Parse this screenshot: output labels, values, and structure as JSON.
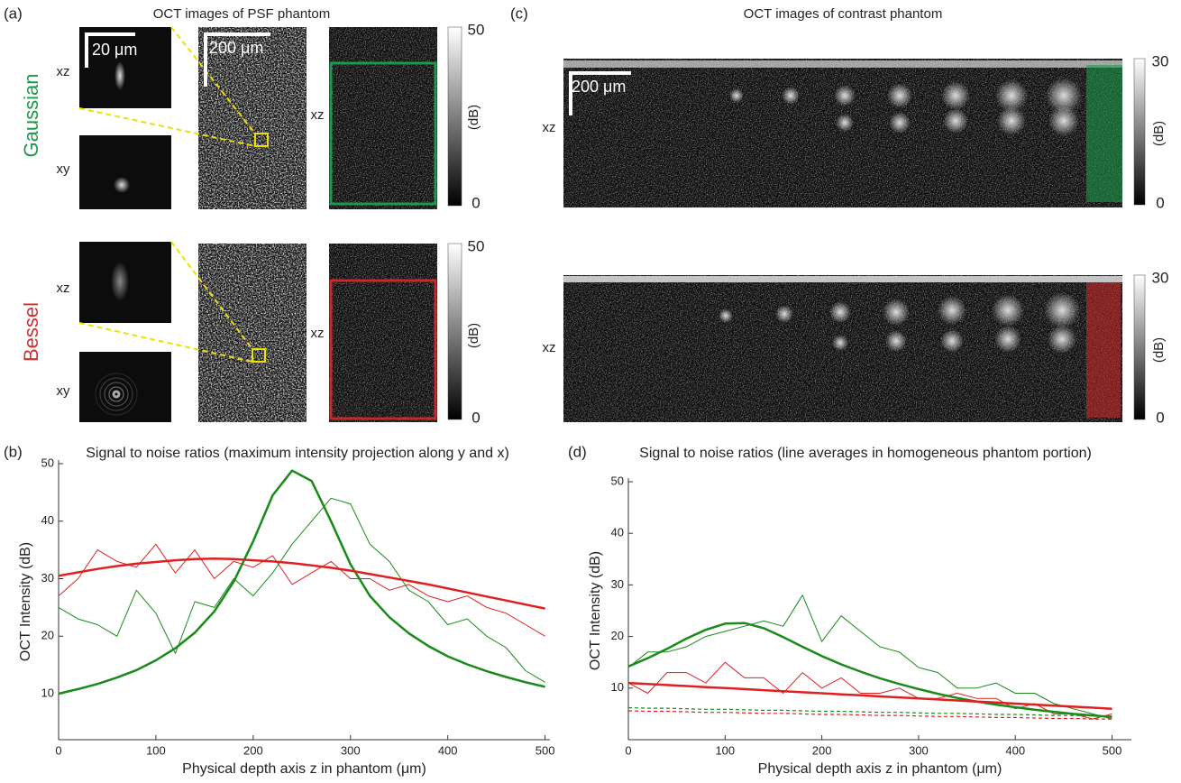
{
  "figure": {
    "panel_a": "(a)",
    "panel_b": "(b)",
    "panel_c": "(c)",
    "panel_d": "(d)",
    "a_title": "OCT images of PSF phantom",
    "c_title": "OCT images of contrast phantom",
    "gaussian": "Gaussian",
    "bessel": "Bessel",
    "plane_xz": "xz",
    "plane_xy": "xy",
    "scale_small": "20 μm",
    "scale_large": "200 μm",
    "colorbar_unit": "(dB)",
    "colorbar_a_ticks": [
      50,
      0
    ],
    "colorbar_c_ticks": [
      30,
      0
    ]
  },
  "chart_data": [
    {
      "type": "line",
      "title": "Signal to noise ratios (maximum intensity projection along y and x)",
      "x_label": "Physical depth axis z in phantom (μm)",
      "y_label": "OCT Intensity (dB)",
      "x": [
        0,
        20,
        40,
        60,
        80,
        100,
        120,
        140,
        160,
        180,
        200,
        220,
        240,
        260,
        280,
        300,
        320,
        340,
        360,
        380,
        400,
        420,
        440,
        460,
        480,
        500
      ],
      "series": [
        {
          "color": "#e02020",
          "values": [
            27,
            30,
            35,
            33,
            32,
            36,
            31,
            35,
            30,
            33,
            32,
            34,
            29,
            31,
            33,
            30,
            30,
            28,
            29,
            27,
            26,
            27,
            25,
            24,
            22,
            20
          ]
        },
        {
          "color": "#1a8a1a",
          "values": [
            25,
            23,
            22,
            20,
            28,
            24,
            17,
            26,
            25,
            30,
            27,
            31,
            36,
            40,
            44,
            43,
            36,
            33,
            28,
            26,
            22,
            23,
            20,
            18,
            14,
            12
          ]
        },
        {
          "color": "#1a8a1a",
          "values": [
            10,
            10.8,
            11.7,
            12.8,
            14.1,
            15.8,
            17.9,
            20.6,
            24.3,
            29.5,
            36.5,
            44.5,
            48.8,
            47,
            40,
            32.5,
            27,
            23.3,
            20.5,
            18.3,
            16.5,
            15.1,
            13.9,
            12.9,
            12,
            11.2
          ]
        },
        {
          "color": "#e02020",
          "values": [
            30.5,
            31.1,
            31.7,
            32.2,
            32.6,
            32.9,
            33.2,
            33.4,
            33.5,
            33.4,
            33.2,
            33,
            32.7,
            32.3,
            31.9,
            31.4,
            30.8,
            30.2,
            29.6,
            29,
            28.3,
            27.6,
            26.9,
            26.2,
            25.5,
            24.8
          ]
        }
      ],
      "xlim": [
        0,
        505
      ],
      "ylim": [
        2,
        50
      ],
      "xticks": [
        0,
        100,
        200,
        300,
        400,
        500
      ],
      "yticks": [
        10,
        20,
        30,
        40,
        50
      ]
    },
    {
      "type": "line",
      "title": "Signal to noise ratios (line averages in homogeneous phantom portion)",
      "x_label": "Physical depth axis z in phantom (μm)",
      "y_label": "OCT Intensity (dB)",
      "x": [
        0,
        20,
        40,
        60,
        80,
        100,
        120,
        140,
        160,
        180,
        200,
        220,
        240,
        260,
        280,
        300,
        320,
        340,
        360,
        380,
        400,
        420,
        440,
        460,
        480,
        500
      ],
      "series": [
        {
          "color": "#e02020",
          "values": [
            11,
            9,
            13,
            13,
            11,
            15,
            12,
            12,
            9,
            13,
            10,
            12,
            9,
            9,
            10,
            8,
            8,
            9,
            8,
            8,
            6,
            7,
            5,
            5,
            4,
            5
          ]
        },
        {
          "color": "#1a8a1a",
          "values": [
            14,
            17,
            17,
            18,
            20,
            21,
            22,
            23,
            22,
            28,
            19,
            24,
            21,
            18,
            17,
            14,
            13,
            10,
            10,
            11,
            9,
            9,
            7,
            6,
            5,
            4
          ]
        },
        {
          "color": "#1a8a1a",
          "values": [
            14.2,
            15.8,
            17.6,
            19.6,
            21.3,
            22.5,
            22.6,
            21.6,
            19.9,
            18,
            16.2,
            14.6,
            13.2,
            11.9,
            10.8,
            9.8,
            8.9,
            8.1,
            7.4,
            6.8,
            6.3,
            5.8,
            5.4,
            5,
            4.7,
            4.4
          ]
        },
        {
          "color": "#e02020",
          "values": [
            11,
            10.8,
            10.6,
            10.4,
            10.2,
            10,
            9.8,
            9.6,
            9.4,
            9.2,
            9,
            8.8,
            8.6,
            8.4,
            8.2,
            8,
            7.8,
            7.6,
            7.4,
            7.2,
            7,
            6.8,
            6.6,
            6.4,
            6.2,
            6
          ]
        },
        {
          "color": "#1a8a1a",
          "dash": true,
          "values": [
            6.2,
            6.1,
            6.1,
            6,
            5.9,
            5.9,
            5.8,
            5.7,
            5.7,
            5.6,
            5.5,
            5.5,
            5.4,
            5.3,
            5.3,
            5.2,
            5.1,
            5.1,
            5,
            4.9,
            4.9,
            4.8,
            4.7,
            4.7,
            4.6,
            4.6
          ]
        },
        {
          "color": "#e02020",
          "dash": true,
          "values": [
            5.6,
            5.5,
            5.5,
            5.4,
            5.3,
            5.3,
            5.2,
            5.1,
            5.1,
            5,
            4.9,
            4.9,
            4.8,
            4.7,
            4.7,
            4.6,
            4.5,
            4.5,
            4.4,
            4.3,
            4.3,
            4.2,
            4.1,
            4.1,
            4,
            4
          ]
        }
      ],
      "xlim": [
        0,
        520
      ],
      "ylim": [
        0,
        50
      ],
      "xticks": [
        0,
        100,
        200,
        300,
        400,
        500
      ],
      "yticks": [
        10,
        20,
        30,
        40,
        50
      ]
    }
  ]
}
